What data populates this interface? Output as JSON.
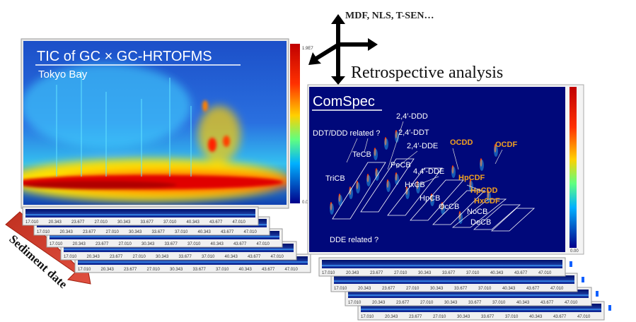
{
  "arrow_label": "MDF, NLS, T-SEN…",
  "retro_label": "Retrospective analysis",
  "tic_panel": {
    "title": "TIC of GC × GC-HRTOFMS",
    "subtitle": "Tokyo Bay",
    "colorbar_max": "1.9E7",
    "colorbar_min": "0.00"
  },
  "comspec_panel": {
    "title": "ComSpec",
    "colorbar_min": "0.00",
    "white_labels": [
      "2,4′-DDD",
      "DDT/DDD related ?",
      "2,4′-DDT",
      "2,4′-DDE",
      "TeCB",
      "PeCB",
      "4,4′-DDE",
      "TriCB",
      "HxCB",
      "HpCB",
      "OcCB",
      "NoCB",
      "DeCB",
      "DDE related ?"
    ],
    "orange_labels": [
      "OCDD",
      "OCDF",
      "HpCDF",
      "HpCDD",
      "HxCDF"
    ]
  },
  "x_tick_labels": [
    "17.010",
    "20.343",
    "23.677",
    "27.010",
    "30.343",
    "33.677",
    "37.010",
    "40.343",
    "43.677",
    "47.010"
  ],
  "sediment_label": "Sediment date"
}
